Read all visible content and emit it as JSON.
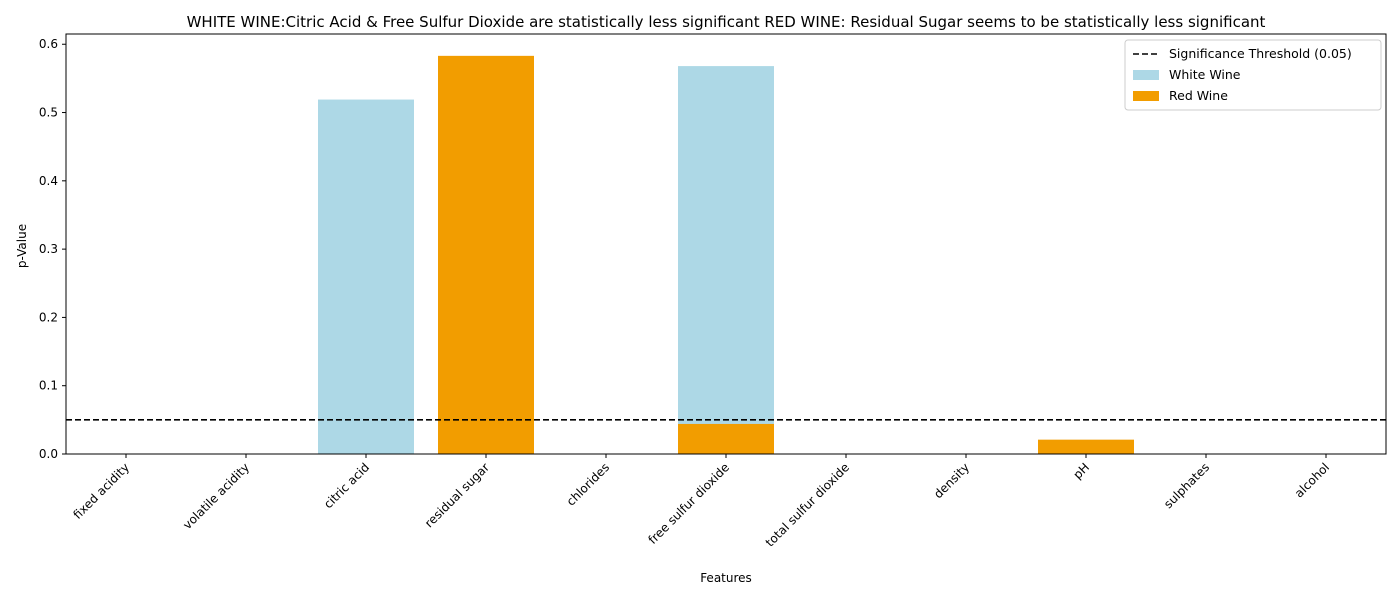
{
  "chart_data": {
    "type": "bar",
    "title": "WHITE WINE:Citric Acid & Free Sulfur Dioxide are statistically less significant   RED WINE: Residual Sugar seems to be statistically less significant",
    "xlabel": "Features",
    "ylabel": "p-Value",
    "ylim": [
      0,
      0.615
    ],
    "yticks": [
      "0.0",
      "0.1",
      "0.2",
      "0.3",
      "0.4",
      "0.5",
      "0.6"
    ],
    "ytick_values": [
      0,
      0.1,
      0.2,
      0.3,
      0.4,
      0.5,
      0.6
    ],
    "categories": [
      "fixed acidity",
      "volatile acidity",
      "citric acid",
      "residual sugar",
      "chlorides",
      "free sulfur dioxide",
      "total sulfur dioxide",
      "density",
      "pH",
      "sulphates",
      "alcohol"
    ],
    "series": [
      {
        "name": "White Wine",
        "color": "#add8e6",
        "values": [
          0,
          0,
          0.519,
          0,
          0,
          0.568,
          0,
          0,
          0,
          0,
          0
        ]
      },
      {
        "name": "Red Wine",
        "color": "#f29d00",
        "values": [
          0,
          0,
          0,
          0.583,
          0,
          0.044,
          0,
          0,
          0.021,
          0,
          0
        ]
      }
    ],
    "threshold": {
      "label": "Significance Threshold (0.05)",
      "value": 0.05,
      "color": "#000000"
    },
    "legend_position": "top-right",
    "grid": false
  }
}
